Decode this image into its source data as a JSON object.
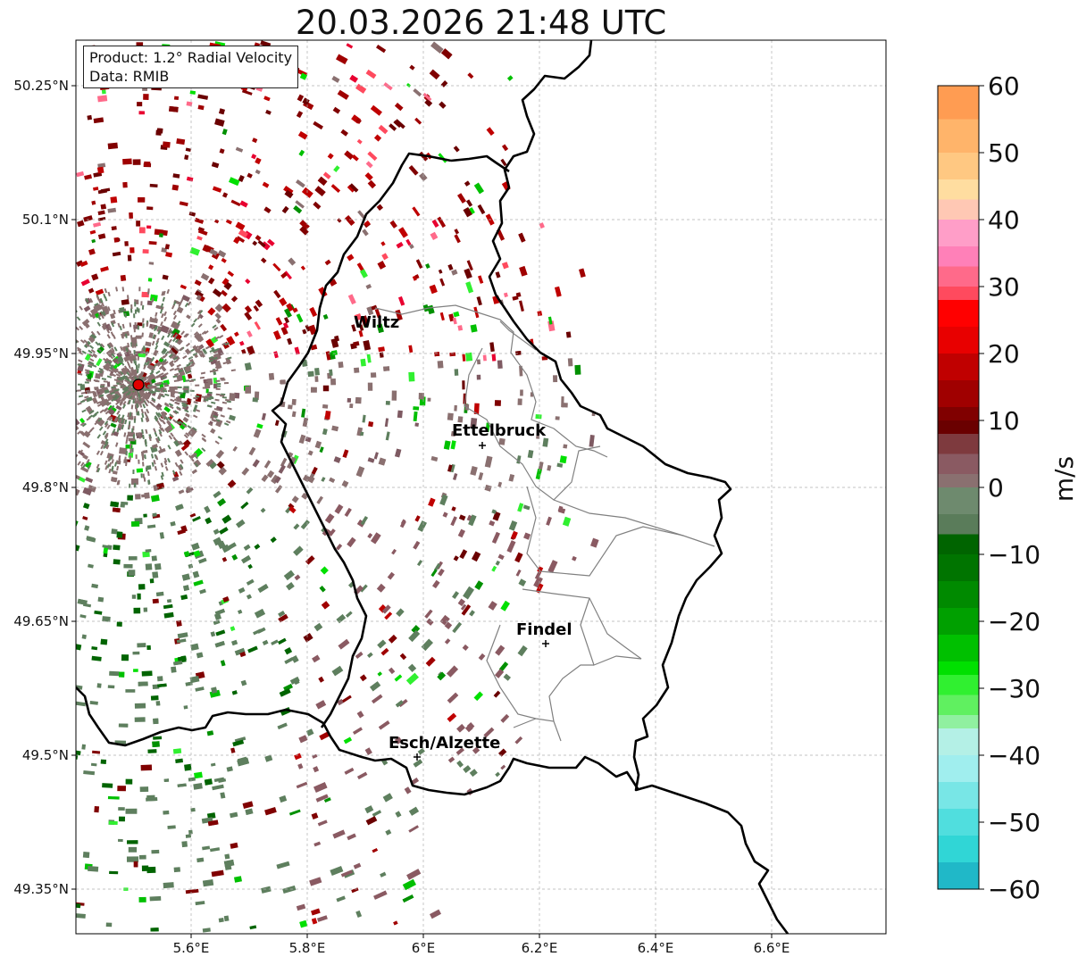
{
  "title": "20.03.2026 21:48 UTC",
  "info_box": {
    "product": "Product: 1.2° Radial Velocity",
    "data": "Data: RMIB"
  },
  "lat_ticks": [
    "50.25°N",
    "50.1°N",
    "49.95°N",
    "49.8°N",
    "49.65°N",
    "49.5°N",
    "49.35°N"
  ],
  "lon_ticks": [
    "5.6°E",
    "5.8°E",
    "6°E",
    "6.2°E",
    "6.4°E",
    "6.6°E"
  ],
  "cities": [
    {
      "name": "Wiltz",
      "lon": 5.93,
      "lat": 49.965
    },
    {
      "name": "Ettelbruck",
      "lon": 6.1,
      "lat": 49.85
    },
    {
      "name": "Findel",
      "lon": 6.21,
      "lat": 49.628
    },
    {
      "name": "Esch/Alzette",
      "lon": 5.99,
      "lat": 49.5
    }
  ],
  "radar_site": {
    "lon": 5.505,
    "lat": 49.914
  },
  "colorbar": {
    "label": "m/s",
    "min": -60,
    "max": 60,
    "ticks": [
      "60",
      "50",
      "40",
      "30",
      "20",
      "10",
      "0",
      "−10",
      "−20",
      "−30",
      "−40",
      "−50",
      "−60"
    ]
  },
  "colors": {
    "approaching_strong": "#00e000",
    "approaching": "#2e8b2e",
    "near_zero_neg": "#5e7f5e",
    "near_zero_pos": "#8a7070",
    "receding": "#800000",
    "receding_strong": "#e00020",
    "border": "#000000",
    "district": "#808080"
  }
}
